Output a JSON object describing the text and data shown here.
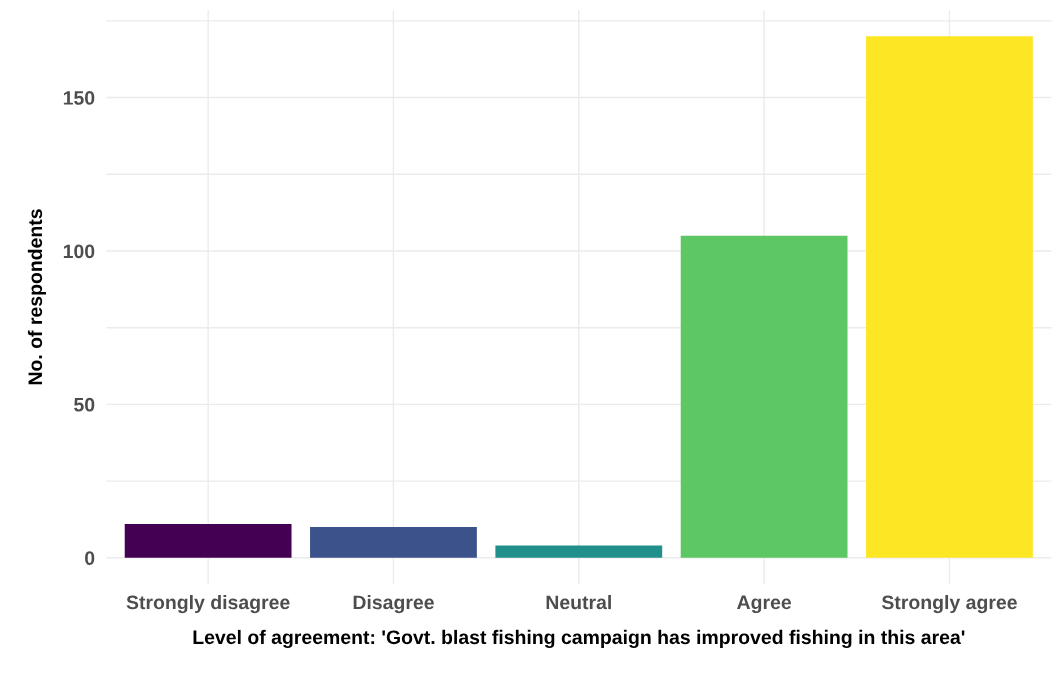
{
  "chart_data": {
    "type": "bar",
    "xlabel": "Level of agreement: 'Govt. blast fishing campaign has improved fishing in this area'",
    "ylabel": "No. of respondents",
    "categories": [
      "Strongly disagree",
      "Disagree",
      "Neutral",
      "Agree",
      "Strongly agree"
    ],
    "values": [
      11,
      10,
      4,
      105,
      170
    ],
    "colors": [
      "#440154",
      "#3b528b",
      "#21908c",
      "#5dc863",
      "#fde725"
    ],
    "ylim": [
      -8.5,
      178.5
    ],
    "yticks": [
      0,
      {
        "value": 25,
        "label": null
      },
      50,
      {
        "value": 75,
        "label": null
      },
      100,
      {
        "value": 125,
        "label": null
      },
      150,
      {
        "value": 175,
        "label": null
      }
    ],
    "grid": true
  }
}
